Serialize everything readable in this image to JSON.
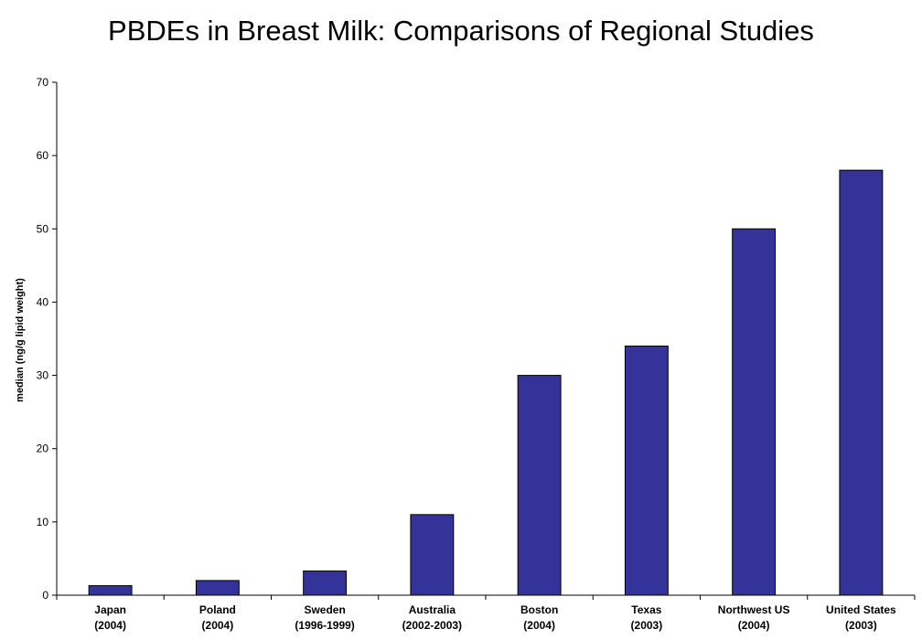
{
  "chart_data": {
    "type": "bar",
    "title": "PBDEs in Breast Milk: Comparisons of Regional Studies",
    "xlabel": "",
    "ylabel": "median (ng/g lipid weight)",
    "ylim": [
      0,
      70
    ],
    "yticks": [
      0,
      10,
      20,
      30,
      40,
      50,
      60,
      70
    ],
    "grid": false,
    "legend": "none",
    "bar_color": "#333399",
    "categories": [
      {
        "name": "Japan",
        "period": "(2004)"
      },
      {
        "name": "Poland",
        "period": "(2004)"
      },
      {
        "name": "Sweden",
        "period": "(1996-1999)"
      },
      {
        "name": "Australia",
        "period": "(2002-2003)"
      },
      {
        "name": "Boston",
        "period": "(2004)"
      },
      {
        "name": "Texas",
        "period": "(2003)"
      },
      {
        "name": "Northwest US",
        "period": "(2004)"
      },
      {
        "name": "United States",
        "period": "(2003)"
      }
    ],
    "values": [
      1.3,
      2,
      3.3,
      11,
      30,
      34,
      50,
      58
    ]
  }
}
